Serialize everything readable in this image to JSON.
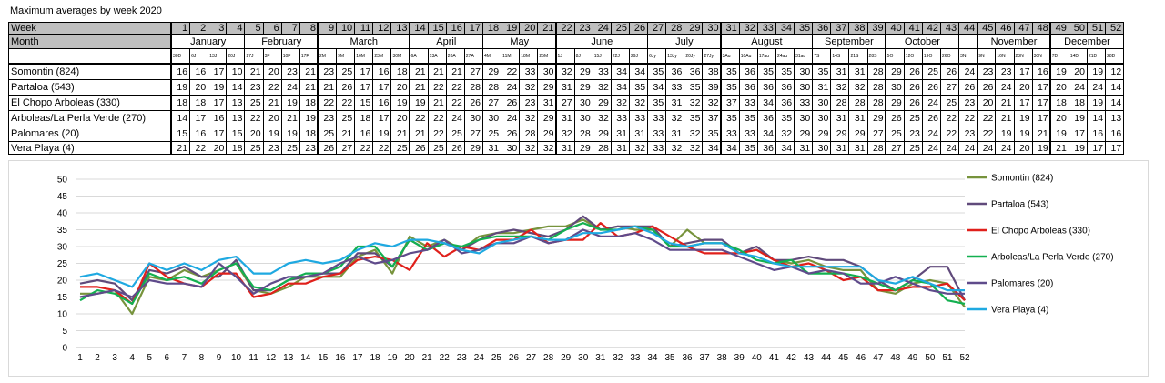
{
  "title": "Maximum averages by week 2020",
  "table": {
    "week_label": "Week",
    "month_label": "Month",
    "weeks": [
      "1",
      "2",
      "3",
      "4",
      "5",
      "6",
      "7",
      "8",
      "9",
      "10",
      "11",
      "12",
      "13",
      "14",
      "15",
      "16",
      "17",
      "18",
      "19",
      "20",
      "21",
      "22",
      "23",
      "24",
      "25",
      "26",
      "27",
      "28",
      "29",
      "30",
      "31",
      "32",
      "33",
      "34",
      "35",
      "36",
      "37",
      "38",
      "39",
      "40",
      "41",
      "42",
      "43",
      "44",
      "45",
      "46",
      "47",
      "48",
      "49",
      "50",
      "51",
      "52"
    ],
    "months": [
      {
        "name": "January",
        "from": 1,
        "to": 4
      },
      {
        "name": "February",
        "from": 5,
        "to": 8
      },
      {
        "name": "March",
        "from": 9,
        "to": 13
      },
      {
        "name": "April",
        "from": 14,
        "to": 17
      },
      {
        "name": "May",
        "from": 18,
        "to": 21
      },
      {
        "name": "June",
        "from": 22,
        "to": 26
      },
      {
        "name": "July",
        "from": 27,
        "to": 30
      },
      {
        "name": "August",
        "from": 31,
        "to": 35
      },
      {
        "name": "September",
        "from": 36,
        "to": 39
      },
      {
        "name": "October",
        "from": 40,
        "to": 43
      },
      {
        "name": "",
        "from": 44,
        "to": 44
      },
      {
        "name": "November",
        "from": 45,
        "to": 48
      },
      {
        "name": "December",
        "from": 49,
        "to": 52
      }
    ],
    "dates": [
      "30D",
      "6J",
      "13J",
      "20J",
      "27J",
      "3F",
      "10F",
      "17F",
      "2M",
      "9M",
      "16M",
      "23M",
      "30M",
      "6A",
      "13A",
      "20A",
      "27A",
      "4M",
      "11M",
      "18M",
      "25M",
      "1J",
      "8J",
      "15J",
      "22J",
      "29J",
      "6Jy",
      "13Jy",
      "20Jy",
      "27Jy",
      "3Au",
      "10Au",
      "17au",
      "24au",
      "31au",
      "7S",
      "14S",
      "21S",
      "28S",
      "5O",
      "12O",
      "19O",
      "26O",
      "3N",
      "9N",
      "16N",
      "23N",
      "30N",
      "7D",
      "14D",
      "21D",
      "28D"
    ],
    "rows": [
      {
        "name": "Somontin (824)",
        "values": [
          16,
          16,
          17,
          10,
          21,
          20,
          23,
          21,
          23,
          25,
          17,
          16,
          18,
          21,
          21,
          21,
          27,
          29,
          22,
          33,
          30,
          32,
          29,
          33,
          34,
          34,
          35,
          36,
          36,
          38,
          35,
          36,
          35,
          35,
          30,
          35,
          31,
          31,
          28,
          29,
          26,
          25,
          26,
          24,
          23,
          23,
          17,
          16,
          19,
          20,
          19,
          12
        ]
      },
      {
        "name": "Partaloa (543)",
        "values": [
          19,
          20,
          19,
          14,
          23,
          22,
          24,
          21,
          21,
          26,
          17,
          17,
          20,
          21,
          22,
          22,
          28,
          28,
          24,
          32,
          29,
          31,
          29,
          32,
          34,
          35,
          34,
          33,
          35,
          39,
          35,
          36,
          36,
          36,
          30,
          31,
          32,
          32,
          28,
          30,
          26,
          26,
          27,
          26,
          26,
          24,
          20,
          17,
          20,
          24,
          24,
          14
        ]
      },
      {
        "name": "El Chopo Arboleas (330)",
        "values": [
          18,
          18,
          17,
          13,
          25,
          21,
          19,
          18,
          22,
          22,
          15,
          16,
          19,
          19,
          21,
          22,
          26,
          27,
          26,
          23,
          31,
          27,
          30,
          29,
          32,
          32,
          35,
          31,
          32,
          32,
          37,
          33,
          34,
          36,
          33,
          30,
          28,
          28,
          28,
          29,
          26,
          24,
          25,
          23,
          20,
          21,
          17,
          17,
          18,
          18,
          19,
          14
        ]
      },
      {
        "name": "Arboleas/La Perla Verde (270)",
        "values": [
          14,
          17,
          16,
          13,
          22,
          20,
          21,
          19,
          23,
          25,
          18,
          17,
          20,
          22,
          22,
          24,
          30,
          30,
          24,
          32,
          29,
          31,
          30,
          32,
          33,
          33,
          33,
          32,
          35,
          37,
          35,
          35,
          36,
          35,
          30,
          30,
          31,
          31,
          29,
          26,
          25,
          26,
          22,
          22,
          22,
          21,
          19,
          17,
          20,
          19,
          14,
          13
        ]
      },
      {
        "name": "Palomares (20)",
        "values": [
          15,
          16,
          17,
          15,
          20,
          19,
          19,
          18,
          25,
          21,
          16,
          19,
          21,
          21,
          22,
          25,
          27,
          25,
          26,
          28,
          29,
          32,
          28,
          29,
          31,
          31,
          33,
          31,
          32,
          35,
          33,
          33,
          34,
          32,
          29,
          29,
          29,
          29,
          27,
          25,
          23,
          24,
          22,
          23,
          22,
          19,
          19,
          21,
          19,
          17,
          16,
          16
        ]
      },
      {
        "name": "Vera Playa (4)",
        "values": [
          21,
          22,
          20,
          18,
          25,
          23,
          25,
          23,
          26,
          27,
          22,
          22,
          25,
          26,
          25,
          26,
          29,
          31,
          30,
          32,
          32,
          31,
          29,
          28,
          31,
          32,
          33,
          32,
          32,
          34,
          34,
          35,
          36,
          34,
          31,
          30,
          31,
          31,
          28,
          27,
          25,
          24,
          24,
          24,
          24,
          24,
          20,
          19,
          21,
          19,
          17,
          17
        ]
      }
    ]
  },
  "chart_data": {
    "type": "line",
    "x": [
      1,
      2,
      3,
      4,
      5,
      6,
      7,
      8,
      9,
      10,
      11,
      12,
      13,
      14,
      15,
      16,
      17,
      18,
      19,
      20,
      21,
      22,
      23,
      24,
      25,
      26,
      27,
      28,
      29,
      30,
      31,
      32,
      33,
      34,
      35,
      36,
      37,
      38,
      39,
      40,
      41,
      42,
      43,
      44,
      45,
      46,
      47,
      48,
      49,
      50,
      51,
      52
    ],
    "ylim": [
      0,
      50
    ],
    "yticks": [
      0,
      5,
      10,
      15,
      20,
      25,
      30,
      35,
      40,
      45,
      50
    ],
    "grid": true,
    "legend": "right",
    "series": [
      {
        "name": "Somontin (824)",
        "color": "#77933c",
        "values": [
          16,
          16,
          17,
          10,
          21,
          20,
          23,
          21,
          23,
          25,
          17,
          16,
          18,
          21,
          21,
          21,
          27,
          29,
          22,
          33,
          30,
          32,
          29,
          33,
          34,
          34,
          35,
          36,
          36,
          38,
          35,
          36,
          35,
          35,
          30,
          35,
          31,
          31,
          28,
          29,
          26,
          25,
          26,
          24,
          23,
          23,
          17,
          16,
          19,
          20,
          19,
          12
        ]
      },
      {
        "name": "Partaloa (543)",
        "color": "#604a7b",
        "values": [
          19,
          20,
          19,
          14,
          23,
          22,
          24,
          21,
          21,
          26,
          17,
          17,
          20,
          21,
          22,
          22,
          28,
          28,
          24,
          32,
          29,
          31,
          29,
          32,
          34,
          35,
          34,
          33,
          35,
          39,
          35,
          36,
          36,
          36,
          30,
          31,
          32,
          32,
          28,
          30,
          26,
          26,
          27,
          26,
          26,
          24,
          20,
          17,
          20,
          24,
          24,
          14
        ]
      },
      {
        "name": "El Chopo Arboleas (330)",
        "color": "#e0201b",
        "values": [
          18,
          18,
          17,
          13,
          25,
          21,
          19,
          18,
          22,
          22,
          15,
          16,
          19,
          19,
          21,
          22,
          26,
          27,
          26,
          23,
          31,
          27,
          30,
          29,
          32,
          32,
          35,
          31,
          32,
          32,
          37,
          33,
          34,
          36,
          33,
          30,
          28,
          28,
          28,
          29,
          26,
          24,
          25,
          23,
          20,
          21,
          17,
          17,
          18,
          18,
          19,
          14
        ]
      },
      {
        "name": "Arboleas/La Perla Verde (270)",
        "color": "#13b050",
        "values": [
          14,
          17,
          16,
          13,
          22,
          20,
          21,
          19,
          23,
          25,
          18,
          17,
          20,
          22,
          22,
          24,
          30,
          30,
          24,
          32,
          29,
          31,
          30,
          32,
          33,
          33,
          33,
          32,
          35,
          37,
          35,
          35,
          36,
          35,
          30,
          30,
          31,
          31,
          29,
          26,
          25,
          26,
          22,
          22,
          22,
          21,
          19,
          17,
          20,
          19,
          14,
          13
        ]
      },
      {
        "name": "Palomares (20)",
        "color": "#5f4b8b",
        "values": [
          15,
          16,
          17,
          15,
          20,
          19,
          19,
          18,
          25,
          21,
          16,
          19,
          21,
          21,
          22,
          25,
          27,
          25,
          26,
          28,
          29,
          32,
          28,
          29,
          31,
          31,
          33,
          31,
          32,
          35,
          33,
          33,
          34,
          32,
          29,
          29,
          29,
          29,
          27,
          25,
          23,
          24,
          22,
          23,
          22,
          19,
          19,
          21,
          19,
          17,
          16,
          16
        ]
      },
      {
        "name": "Vera Playa (4)",
        "color": "#1fa9e1",
        "values": [
          21,
          22,
          20,
          18,
          25,
          23,
          25,
          23,
          26,
          27,
          22,
          22,
          25,
          26,
          25,
          26,
          29,
          31,
          30,
          32,
          32,
          31,
          29,
          28,
          31,
          32,
          33,
          32,
          32,
          34,
          34,
          35,
          36,
          34,
          31,
          30,
          31,
          31,
          28,
          27,
          25,
          24,
          24,
          24,
          24,
          24,
          20,
          19,
          21,
          19,
          17,
          17
        ]
      }
    ]
  }
}
